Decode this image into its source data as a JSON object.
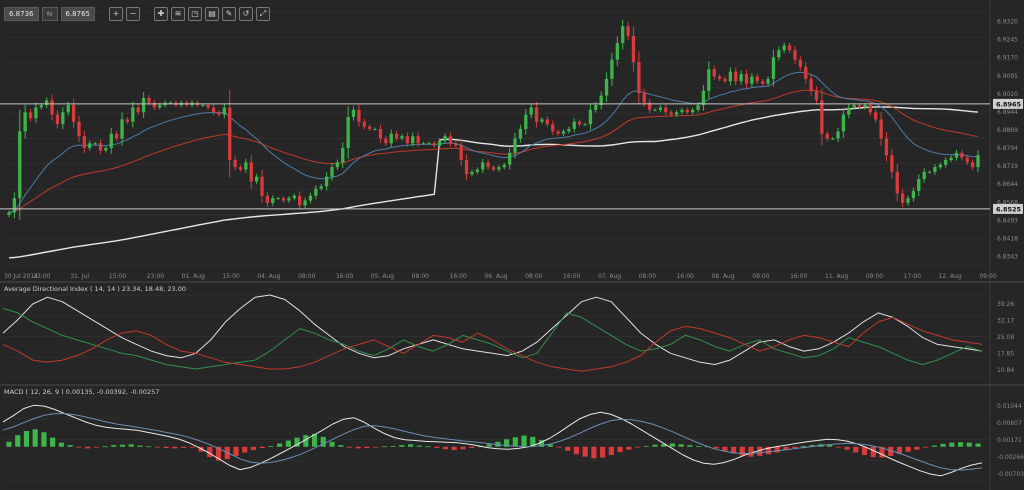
{
  "toolbar": {
    "bid": "6.8736",
    "ask": "6.8765",
    "tools": [
      "zoom-in",
      "zoom-out",
      "crosshair",
      "indicators",
      "objects",
      "templates",
      "edit",
      "reset",
      "expand"
    ]
  },
  "colors": {
    "bull": "#3db54a",
    "bear": "#d93a3a",
    "ema_fast": "#4d7ca8",
    "ema_mid": "#c0392b",
    "sma_long": "#e6e6e6",
    "hline": "#c8c8c8",
    "adx": "#e0e0e0",
    "di_plus": "#2f8f4f",
    "di_minus": "#c0392b"
  },
  "chart_data": [
    {
      "type": "candlestick",
      "panel": "price",
      "x_ticks": [
        "30 Jul 2014",
        "23:00",
        "31. Jul",
        "15:00",
        "23:00",
        "01. Aug",
        "15:00",
        "04. Aug",
        "08:00",
        "16:00",
        "05. Aug",
        "08:00",
        "16:00",
        "06. Aug",
        "08:00",
        "16:00",
        "07. Aug",
        "08:00",
        "16:00",
        "08. Aug",
        "08:00",
        "16:00",
        "11. Aug",
        "09:00",
        "17:00",
        "12. Aug",
        "09:00"
      ],
      "y_ticks": [
        "6.9320",
        "6.9245",
        "6.9170",
        "6.9095",
        "6.9020",
        "6.8944",
        "6.8869",
        "6.8794",
        "6.8719",
        "6.8644",
        "6.8568",
        "6.8493",
        "6.8418",
        "6.8343"
      ],
      "ylim": [
        6.829,
        6.935
      ],
      "horizontal_lines": [
        {
          "label": "6.8965",
          "value": 6.8965
        },
        {
          "label": "6.8525",
          "value": 6.8525
        }
      ],
      "last_price": 6.8736,
      "closes": [
        6.851,
        6.857,
        6.885,
        6.893,
        6.8905,
        6.895,
        6.896,
        6.898,
        6.892,
        6.888,
        6.893,
        6.896,
        6.889,
        6.883,
        6.878,
        6.88,
        6.88,
        6.877,
        6.878,
        6.884,
        6.882,
        6.89,
        6.889,
        6.895,
        6.893,
        6.899,
        6.897,
        6.895,
        6.896,
        6.897,
        6.897,
        6.896,
        6.897,
        6.896,
        6.897,
        6.896,
        6.896,
        6.895,
        6.893,
        6.892,
        6.895,
        6.873,
        6.87,
        6.869,
        6.872,
        6.864,
        6.866,
        6.858,
        6.855,
        6.857,
        6.857,
        6.856,
        6.857,
        6.858,
        6.854,
        6.856,
        6.858,
        6.861,
        6.862,
        6.866,
        6.87,
        6.872,
        6.878,
        6.891,
        6.894,
        6.889,
        6.887,
        6.886,
        6.886,
        6.882,
        6.88,
        6.884,
        6.882,
        6.883,
        6.88,
        6.883,
        6.88,
        6.88,
        6.88,
        6.879,
        6.881,
        6.883,
        6.88,
        6.879,
        6.873,
        6.867,
        6.868,
        6.869,
        6.872,
        6.87,
        6.869,
        6.87,
        6.871,
        6.876,
        6.882,
        6.886,
        6.892,
        6.895,
        6.889,
        6.89,
        6.888,
        6.885,
        6.884,
        6.885,
        6.886,
        6.889,
        6.888,
        6.888,
        6.894,
        6.896,
        6.9,
        6.907,
        6.915,
        6.922,
        6.929,
        6.925,
        6.914,
        6.901,
        6.897,
        6.894,
        6.894,
        6.895,
        6.893,
        6.892,
        6.893,
        6.894,
        6.893,
        6.894,
        6.896,
        6.902,
        6.911,
        6.908,
        6.907,
        6.906,
        6.91,
        6.906,
        6.909,
        6.905,
        6.908,
        6.906,
        6.905,
        6.907,
        6.916,
        6.919,
        6.921,
        6.919,
        6.915,
        6.912,
        6.907,
        6.902,
        6.898,
        6.884,
        6.882,
        6.882,
        6.885,
        6.892,
        6.895,
        6.896,
        6.895,
        6.896,
        6.893,
        6.89,
        6.882,
        6.875,
        6.868,
        6.859,
        6.855,
        6.857,
        6.86,
        6.865,
        6.868,
        6.868,
        6.87,
        6.871,
        6.873,
        6.874,
        6.876,
        6.874,
        6.872,
        6.87,
        6.875
      ],
      "series": [
        {
          "name": "",
          "style": "ema_fast"
        },
        {
          "name": "",
          "style": "ema_mid"
        },
        {
          "name": "",
          "style": "sma_long"
        }
      ]
    },
    {
      "type": "line",
      "panel": "adx",
      "title": "Average Directional Index ( 14, 14 ) 23.34, 18.48, 23.00",
      "y_ticks": [
        "39.26",
        "32.17",
        "25.08",
        "17.85",
        "10.84"
      ],
      "ylim": [
        7.0,
        44.0
      ],
      "series": [
        {
          "name": "",
          "style": "adx",
          "values": [
            27,
            33,
            40,
            43,
            41,
            37,
            33,
            29,
            25,
            22,
            19,
            17,
            16,
            18,
            24,
            32,
            38,
            43,
            44,
            42,
            37,
            31,
            26,
            21,
            18,
            16,
            17,
            20,
            22,
            24,
            22,
            20,
            19,
            18,
            17,
            19,
            23,
            29,
            35,
            41,
            43,
            41,
            34,
            27,
            22,
            18,
            16,
            14,
            13,
            15,
            19,
            23,
            24,
            21,
            19,
            20,
            23,
            27,
            32,
            36,
            34,
            30,
            25,
            22,
            21,
            20,
            19
          ]
        },
        {
          "name": "",
          "style": "di_plus",
          "values": [
            38,
            36,
            32,
            29,
            26,
            24,
            22,
            20,
            18,
            17,
            15,
            13,
            12,
            11,
            12,
            13,
            14,
            15,
            19,
            24,
            29,
            27,
            24,
            22,
            19,
            17,
            20,
            24,
            21,
            19,
            22,
            26,
            24,
            22,
            19,
            16,
            18,
            27,
            36,
            34,
            30,
            26,
            22,
            19,
            20,
            22,
            26,
            24,
            21,
            19,
            22,
            24,
            20,
            18,
            16,
            17,
            20,
            25,
            23,
            21,
            18,
            15,
            13,
            15,
            18,
            21,
            19
          ]
        },
        {
          "name": "",
          "style": "di_minus",
          "values": [
            22,
            19,
            15,
            14,
            15,
            17,
            20,
            24,
            27,
            28,
            26,
            22,
            19,
            18,
            16,
            14,
            13,
            12,
            11,
            11,
            12,
            14,
            17,
            20,
            22,
            24,
            21,
            18,
            22,
            26,
            25,
            23,
            27,
            24,
            20,
            17,
            14,
            12,
            11,
            10,
            11,
            12,
            14,
            17,
            23,
            28,
            30,
            29,
            27,
            25,
            22,
            19,
            21,
            24,
            26,
            25,
            23,
            21,
            27,
            32,
            34,
            31,
            28,
            26,
            24,
            23,
            22
          ]
        }
      ]
    },
    {
      "type": "bar_line",
      "panel": "macd",
      "title": "MACD ( 12, 26, 9 ) 0.00135, -0.00392, -0.00257",
      "y_ticks": [
        "0.01044",
        "0.00607",
        "0.00171",
        "-0.00266",
        "-0.00703"
      ],
      "ylim": [
        -0.0085,
        0.012
      ],
      "histogram": [
        0.0012,
        0.0028,
        0.0038,
        0.0042,
        0.0035,
        0.0022,
        0.001,
        0.0004,
        -0.0002,
        -0.0004,
        -0.0002,
        0.0001,
        0.0004,
        0.0005,
        0.0006,
        0.0003,
        0.0001,
        -0.0001,
        -0.0003,
        -0.0004,
        -0.0003,
        -0.0002,
        -0.0012,
        -0.0025,
        -0.0033,
        -0.003,
        -0.0022,
        -0.0014,
        -0.0008,
        -0.0003,
        0.0002,
        0.0008,
        0.0015,
        0.0022,
        0.0028,
        0.0031,
        0.0024,
        0.0012,
        0.0004,
        -0.0002,
        -0.0004,
        -0.0003,
        -0.0001,
        0.0001,
        0.0002,
        0.0004,
        0.0006,
        0.0003,
        0.0001,
        -0.0003,
        -0.0006,
        -0.0008,
        -0.0006,
        -0.0003,
        0.0001,
        0.0006,
        0.0012,
        0.0018,
        0.0023,
        0.0027,
        0.0024,
        0.0016,
        0.0006,
        -0.0002,
        -0.001,
        -0.0018,
        -0.0024,
        -0.0028,
        -0.0026,
        -0.002,
        -0.0013,
        -0.0007,
        -0.0002,
        0.0002,
        0.0005,
        0.0007,
        0.0008,
        0.0006,
        0.0004,
        0.0002,
        0.0001,
        -0.0004,
        -0.001,
        -0.0016,
        -0.0021,
        -0.0024,
        -0.0022,
        -0.0018,
        -0.0014,
        -0.0008,
        -0.0003,
        0.0002,
        0.0004,
        0.0006,
        0.0004,
        -0.0002,
        -0.0007,
        -0.0014,
        -0.002,
        -0.0025,
        -0.0026,
        -0.0022,
        -0.0017,
        -0.0012,
        -0.0007,
        -0.0002,
        0.0003,
        0.0007,
        0.001,
        0.0011,
        0.001,
        0.0008
      ],
      "series": [
        {
          "name": "",
          "style": "macd_line",
          "values": [
            0.006,
            0.0075,
            0.0092,
            0.01,
            0.0098,
            0.009,
            0.008,
            0.007,
            0.006,
            0.0052,
            0.0047,
            0.0044,
            0.0042,
            0.004,
            0.0035,
            0.003,
            0.0025,
            0.0019,
            0.001,
            -0.0002,
            -0.0015,
            -0.003,
            -0.0045,
            -0.0055,
            -0.005,
            -0.004,
            -0.0028,
            -0.0015,
            -0.0002,
            0.0012,
            0.0026,
            0.004,
            0.0055,
            0.0066,
            0.007,
            0.006,
            0.0045,
            0.0032,
            0.0022,
            0.0017,
            0.0015,
            0.0013,
            0.0012,
            0.0011,
            0.001,
            0.0007,
            0.0003,
            -0.0002,
            -0.0005,
            -0.0006,
            -0.0004,
            0.0,
            0.0008,
            0.002,
            0.0035,
            0.0052,
            0.0068,
            0.0078,
            0.0083,
            0.0078,
            0.0068,
            0.0055,
            0.004,
            0.0025,
            0.001,
            -0.0005,
            -0.002,
            -0.0032,
            -0.004,
            -0.0042,
            -0.0038,
            -0.003,
            -0.002,
            -0.0012,
            -0.0005,
            0.0,
            0.0004,
            0.0008,
            0.0012,
            0.0015,
            0.0018,
            0.0017,
            0.0013,
            0.0006,
            -0.0004,
            -0.0015,
            -0.0027,
            -0.0038,
            -0.0048,
            -0.0058,
            -0.0066,
            -0.007,
            -0.0062,
            -0.0052,
            -0.0044,
            -0.0039
          ]
        },
        {
          "name": "",
          "style": "signal_line",
          "values": [
            0.004,
            0.0048,
            0.0058,
            0.0068,
            0.0076,
            0.008,
            0.008,
            0.0077,
            0.0072,
            0.0066,
            0.006,
            0.0055,
            0.0051,
            0.0047,
            0.0043,
            0.0039,
            0.0034,
            0.0029,
            0.0023,
            0.0015,
            0.0006,
            -0.0005,
            -0.0017,
            -0.0029,
            -0.0037,
            -0.004,
            -0.0038,
            -0.0033,
            -0.0026,
            -0.0017,
            -0.0006,
            0.0006,
            0.0018,
            0.003,
            0.0041,
            0.0049,
            0.0051,
            0.0048,
            0.0043,
            0.0037,
            0.0031,
            0.0026,
            0.0022,
            0.0019,
            0.0016,
            0.0013,
            0.0011,
            0.0008,
            0.0005,
            0.0003,
            0.0001,
            0.0,
            0.0002,
            0.0006,
            0.0013,
            0.0022,
            0.0033,
            0.0045,
            0.0055,
            0.0063,
            0.0066,
            0.0065,
            0.0061,
            0.0055,
            0.0046,
            0.0036,
            0.0025,
            0.0014,
            0.0004,
            -0.0005,
            -0.0011,
            -0.0015,
            -0.0016,
            -0.0015,
            -0.0013,
            -0.001,
            -0.0007,
            -0.0004,
            -0.0001,
            0.0002,
            0.0005,
            0.0007,
            0.0008,
            0.0007,
            0.0004,
            -0.0001,
            -0.0008,
            -0.0016,
            -0.0025,
            -0.0034,
            -0.0043,
            -0.0051,
            -0.0055,
            -0.0056,
            -0.0054,
            -0.0051
          ]
        }
      ]
    }
  ]
}
